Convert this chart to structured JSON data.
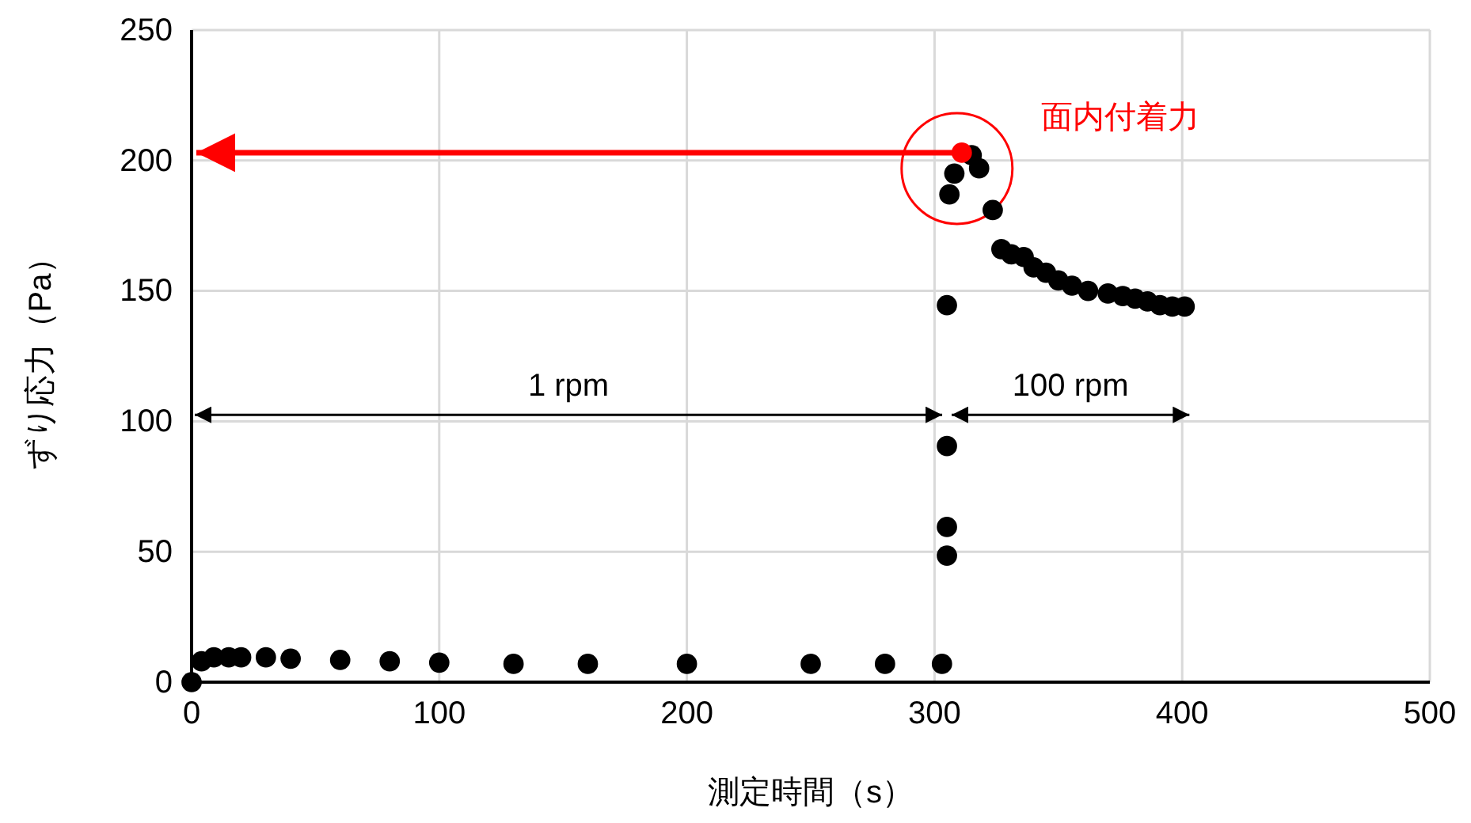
{
  "chart_data": {
    "type": "scatter",
    "xlabel": "測定時間（s）",
    "ylabel": "ずり応力（Pa）",
    "xlim": [
      0,
      500
    ],
    "xticks": [
      0,
      100,
      200,
      300,
      400,
      500
    ],
    "ylim": [
      0,
      250
    ],
    "yticks": [
      0,
      50,
      100,
      150,
      200,
      250
    ],
    "grid": true,
    "marker": "circle",
    "series": [
      {
        "color": "#000000",
        "x": [
          0,
          4,
          9,
          15,
          20,
          30,
          40,
          60,
          80,
          100,
          130,
          160,
          200,
          250,
          280,
          303,
          305,
          305,
          305,
          305,
          306,
          308,
          315,
          318,
          323.5,
          327,
          331,
          336,
          340,
          345,
          350,
          355.5,
          362,
          370,
          376,
          381,
          386,
          391,
          396,
          401
        ],
        "values": [
          0,
          8,
          9.5,
          9.5,
          9.5,
          9.5,
          9,
          8.5,
          8,
          7.5,
          7,
          7,
          7,
          7,
          7,
          7,
          48.5,
          59.5,
          90.5,
          144.5,
          187,
          195,
          202,
          197,
          181,
          166,
          164,
          163,
          159,
          157,
          154,
          152,
          150,
          149,
          148,
          147,
          146,
          144.5,
          144,
          144
        ]
      },
      {
        "color": "#ff0000",
        "x": [
          311
        ],
        "values": [
          203
        ]
      }
    ],
    "annotations": [
      "1 rpm",
      "100 rpm",
      {
        "text": "面内付着力",
        "x": 311,
        "y": 203
      }
    ]
  }
}
